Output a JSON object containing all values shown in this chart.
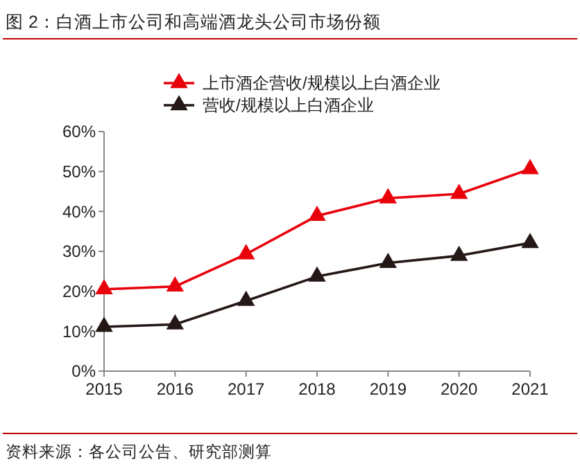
{
  "chart_data": {
    "type": "line",
    "title": "图 2：白酒上市公司和高端酒龙头公司市场份额",
    "categories": [
      "2015",
      "2016",
      "2017",
      "2018",
      "2019",
      "2020",
      "2021"
    ],
    "series": [
      {
        "name": "上市酒企营收/规模以上白酒企业",
        "color": "#e8000b",
        "values": [
          20.5,
          21.2,
          29.3,
          38.9,
          43.3,
          44.4,
          50.6
        ]
      },
      {
        "name": "营收/规模以上白酒企业",
        "color": "#231815",
        "values": [
          11.1,
          11.7,
          17.6,
          23.7,
          27.1,
          28.9,
          32.1
        ]
      }
    ],
    "ylim": [
      0,
      60
    ],
    "yticks": [
      {
        "value": 0,
        "label": "0%"
      },
      {
        "value": 10,
        "label": "10%"
      },
      {
        "value": 20,
        "label": "20%"
      },
      {
        "value": 30,
        "label": "30%"
      },
      {
        "value": 40,
        "label": "40%"
      },
      {
        "value": 50,
        "label": "50%"
      },
      {
        "value": 60,
        "label": "60%"
      }
    ],
    "grid": false,
    "legend": "top",
    "marker": "triangle",
    "line_style": "solid",
    "annotations": [
      "资料来源：各公司公告、研究部测算"
    ]
  }
}
